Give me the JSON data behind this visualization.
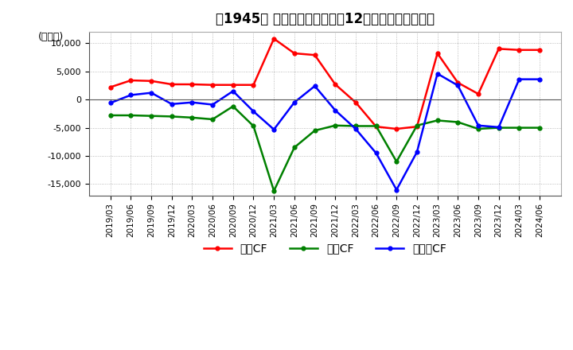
{
  "title": "　1945、 キャッシュフローの12か月移動合計の推移",
  "ylabel": "(百万円)",
  "ylim": [
    -17000,
    12000
  ],
  "yticks": [
    -15000,
    -10000,
    -5000,
    0,
    5000,
    10000
  ],
  "dates": [
    "2019/03",
    "2019/06",
    "2019/09",
    "2019/12",
    "2020/03",
    "2020/06",
    "2020/09",
    "2020/12",
    "2021/03",
    "2021/06",
    "2021/09",
    "2021/12",
    "2022/03",
    "2022/06",
    "2022/09",
    "2022/12",
    "2023/03",
    "2023/06",
    "2023/09",
    "2023/12",
    "2024/03",
    "2024/06"
  ],
  "operating_cf": [
    2200,
    3400,
    3300,
    2700,
    2700,
    2600,
    2600,
    2600,
    10800,
    8200,
    7900,
    2700,
    -500,
    -4800,
    -5200,
    -4800,
    8200,
    3000,
    1000,
    9000,
    8800,
    8800
  ],
  "investing_cf": [
    -2800,
    -2800,
    -2900,
    -3000,
    -3200,
    -3500,
    -1200,
    -4700,
    -16200,
    -8500,
    -5500,
    -4600,
    -4700,
    -4700,
    -11000,
    -4600,
    -3700,
    -4000,
    -5200,
    -5000,
    -5000,
    -5000
  ],
  "free_cf": [
    -600,
    800,
    1200,
    -800,
    -500,
    -900,
    1500,
    -2100,
    -5300,
    -500,
    2400,
    -1900,
    -5200,
    -9500,
    -16000,
    -9300,
    4600,
    2500,
    -4600,
    -4900,
    3600,
    3600
  ],
  "colors": {
    "operating": "#ff0000",
    "investing": "#008000",
    "free": "#0000ff"
  },
  "legend_labels": [
    "営業CF",
    "投資CF",
    "フリーCF"
  ],
  "background_color": "#ffffff",
  "grid_color": "#aaaaaa",
  "title_fontsize": 12
}
